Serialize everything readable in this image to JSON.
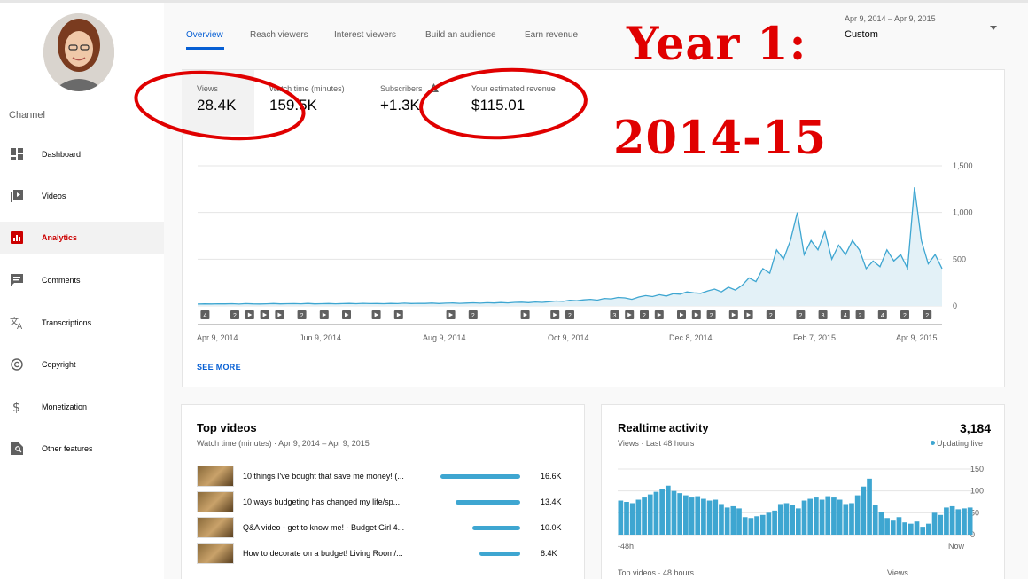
{
  "sidebar": {
    "channel_label": "Channel",
    "items": [
      {
        "label": "Dashboard",
        "icon": "dashboard-icon"
      },
      {
        "label": "Videos",
        "icon": "video-library-icon"
      },
      {
        "label": "Analytics",
        "icon": "analytics-icon"
      },
      {
        "label": "Comments",
        "icon": "comment-icon"
      },
      {
        "label": "Transcriptions",
        "icon": "translate-icon"
      },
      {
        "label": "Copyright",
        "icon": "copyright-icon"
      },
      {
        "label": "Monetization",
        "icon": "dollar-icon"
      },
      {
        "label": "Other features",
        "icon": "other-features-icon"
      }
    ],
    "active_index": 2
  },
  "tabs": [
    "Overview",
    "Reach viewers",
    "Interest viewers",
    "Build an audience",
    "Earn revenue"
  ],
  "active_tab": 0,
  "date_picker": {
    "range": "Apr 9, 2014 – Apr 9, 2015",
    "preset": "Custom"
  },
  "metrics": [
    {
      "label": "Views",
      "value": "28.4K"
    },
    {
      "label": "Watch time (minutes)",
      "value": "159.5K"
    },
    {
      "label": "Subscribers",
      "value": "+1.3K"
    },
    {
      "label": "Your estimated revenue",
      "value": "$115.01"
    }
  ],
  "overview_chart": {
    "y_ticks": [
      "1,500",
      "1,000",
      "500",
      "0"
    ],
    "x_labels": [
      "Apr 9, 2014",
      "Jun 9, 2014",
      "Aug 9, 2014",
      "Oct 9, 2014",
      "Dec 8, 2014",
      "Feb 7, 2015",
      "Apr 9, 2015"
    ],
    "line_color": "#3ea6d1",
    "ylim": [
      0,
      1500
    ],
    "views": [
      20,
      22,
      21,
      23,
      22,
      24,
      20,
      25,
      22,
      21,
      23,
      26,
      22,
      24,
      25,
      23,
      27,
      22,
      24,
      26,
      23,
      25,
      27,
      24,
      28,
      25,
      26,
      24,
      27,
      25,
      29,
      26,
      28,
      27,
      30,
      26,
      29,
      31,
      28,
      30,
      33,
      29,
      34,
      31,
      36,
      32,
      38,
      40,
      35,
      42,
      38,
      45,
      52,
      48,
      60,
      55,
      65,
      70,
      62,
      80,
      75,
      90,
      85,
      70,
      95,
      110,
      100,
      120,
      105,
      130,
      125,
      150,
      140,
      135,
      160,
      180,
      150,
      200,
      170,
      220,
      300,
      260,
      400,
      350,
      600,
      500,
      700,
      1000,
      550,
      700,
      600,
      800,
      500,
      650,
      550,
      700,
      600,
      400,
      480,
      420,
      600,
      480,
      550,
      400,
      1270,
      700,
      450,
      550,
      400
    ],
    "markers": [
      {
        "x": 0.01,
        "label": "4"
      },
      {
        "x": 0.05,
        "label": "2"
      },
      {
        "x": 0.07,
        "label": "▶"
      },
      {
        "x": 0.09,
        "label": "▶"
      },
      {
        "x": 0.11,
        "label": "▶"
      },
      {
        "x": 0.14,
        "label": "2"
      },
      {
        "x": 0.17,
        "label": "▶"
      },
      {
        "x": 0.2,
        "label": "▶"
      },
      {
        "x": 0.24,
        "label": "▶"
      },
      {
        "x": 0.27,
        "label": "▶"
      },
      {
        "x": 0.34,
        "label": "▶"
      },
      {
        "x": 0.37,
        "label": "2"
      },
      {
        "x": 0.44,
        "label": "▶"
      },
      {
        "x": 0.48,
        "label": "▶"
      },
      {
        "x": 0.5,
        "label": "2"
      },
      {
        "x": 0.56,
        "label": "3"
      },
      {
        "x": 0.58,
        "label": "▶"
      },
      {
        "x": 0.6,
        "label": "2"
      },
      {
        "x": 0.62,
        "label": "▶"
      },
      {
        "x": 0.65,
        "label": "▶"
      },
      {
        "x": 0.67,
        "label": "▶"
      },
      {
        "x": 0.69,
        "label": "2"
      },
      {
        "x": 0.72,
        "label": "▶"
      },
      {
        "x": 0.74,
        "label": "▶"
      },
      {
        "x": 0.77,
        "label": "2"
      },
      {
        "x": 0.81,
        "label": "2"
      },
      {
        "x": 0.84,
        "label": "3"
      },
      {
        "x": 0.87,
        "label": "4"
      },
      {
        "x": 0.89,
        "label": "2"
      },
      {
        "x": 0.92,
        "label": "4"
      },
      {
        "x": 0.95,
        "label": "2"
      },
      {
        "x": 0.98,
        "label": "2"
      }
    ]
  },
  "see_more": "SEE MORE",
  "top_videos": {
    "title": "Top videos",
    "subtitle": "Watch time (minutes) · Apr 9, 2014 – Apr 9, 2015",
    "rows": [
      {
        "title": "10 things I've bought that save me money! (...",
        "value": "16.6K",
        "num": 16.6
      },
      {
        "title": "10 ways budgeting has changed my life/sp...",
        "value": "13.4K",
        "num": 13.4
      },
      {
        "title": "Q&A video - get to know me! - Budget Girl 4...",
        "value": "10.0K",
        "num": 10.0
      },
      {
        "title": "How to decorate on a budget! Living Room/...",
        "value": "8.4K",
        "num": 8.4
      }
    ]
  },
  "realtime": {
    "title": "Realtime activity",
    "total": "3,184",
    "subtitle": "Views · Last 48 hours",
    "status": "Updating live",
    "y_ticks": [
      "150",
      "100",
      "50",
      "0"
    ],
    "x_start": "-48h",
    "x_end": "Now",
    "ylim": [
      0,
      150
    ],
    "bars": [
      78,
      75,
      72,
      80,
      85,
      92,
      98,
      105,
      112,
      100,
      95,
      90,
      85,
      88,
      82,
      78,
      80,
      70,
      62,
      65,
      60,
      40,
      38,
      42,
      45,
      50,
      55,
      70,
      72,
      68,
      60,
      78,
      82,
      85,
      80,
      88,
      85,
      80,
      70,
      72,
      90,
      110,
      128,
      68,
      52,
      38,
      32,
      40,
      28,
      25,
      30,
      18,
      25,
      50,
      45,
      62,
      65,
      58,
      60,
      62
    ],
    "bar_color": "#3ea6d1",
    "foot_left": "Top videos · 48 hours",
    "foot_right": "Views"
  },
  "overlay": {
    "line1": "Year 1:",
    "line2": "2014-15",
    "color": "#e00000"
  }
}
